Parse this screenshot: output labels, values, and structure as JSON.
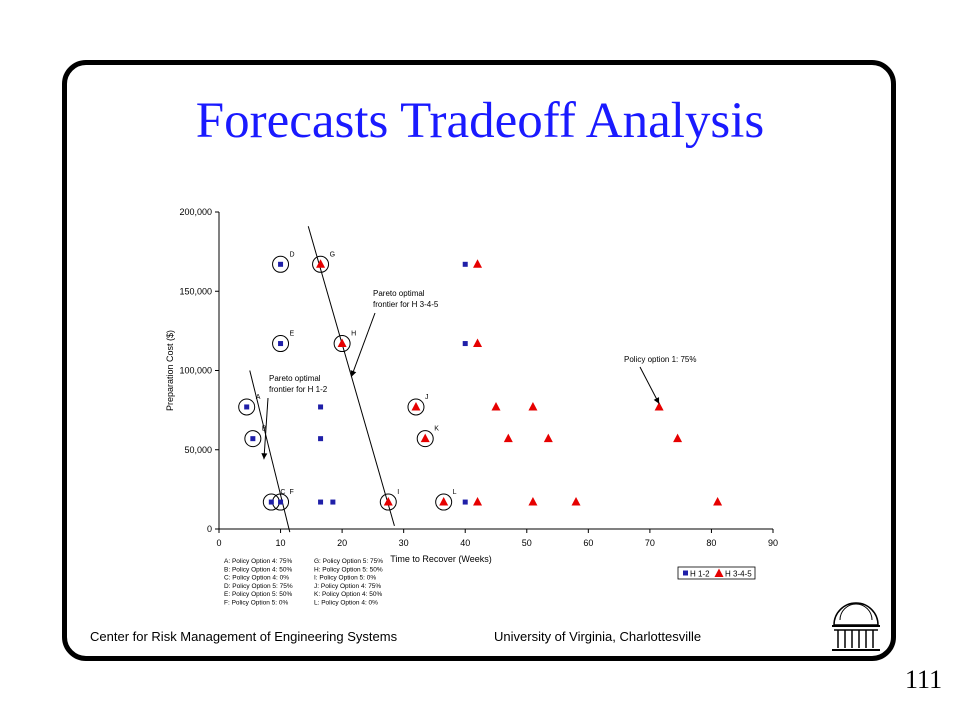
{
  "slide": {
    "title": "Forecasts Tradeoff Analysis",
    "footer_left": "Center for Risk Management of Engineering Systems",
    "footer_right": "University of Virginia, Charlottesville",
    "page_number": "111",
    "title_color": "#1a1aff"
  },
  "chart_data": {
    "type": "scatter",
    "xlabel": "Time to Recover (Weeks)",
    "ylabel": "Preparation Cost ($)",
    "xlim": [
      0,
      90
    ],
    "ylim": [
      0,
      200000
    ],
    "x_ticks": [
      "0",
      "10",
      "20",
      "30",
      "40",
      "50",
      "60",
      "70",
      "80",
      "90"
    ],
    "y_ticks": [
      "0",
      "50,000",
      "100,000",
      "150,000",
      "200,000"
    ],
    "grid": false,
    "legend_position": "bottom-right",
    "series": [
      {
        "name": "H 1-2",
        "marker": "square",
        "color": "#1f1fa8",
        "points": [
          {
            "x": 4.5,
            "y": 77000
          },
          {
            "x": 5.5,
            "y": 57000
          },
          {
            "x": 8.5,
            "y": 17000
          },
          {
            "x": 10.0,
            "y": 17000
          },
          {
            "x": 10.0,
            "y": 117000
          },
          {
            "x": 10.0,
            "y": 167000
          },
          {
            "x": 16.5,
            "y": 77000
          },
          {
            "x": 16.5,
            "y": 57000
          },
          {
            "x": 16.5,
            "y": 17000
          },
          {
            "x": 18.5,
            "y": 17000
          },
          {
            "x": 40.0,
            "y": 167000
          },
          {
            "x": 40.0,
            "y": 117000
          },
          {
            "x": 40.0,
            "y": 17000
          }
        ]
      },
      {
        "name": "H 3-4-5",
        "marker": "triangle",
        "color": "#e60000",
        "points": [
          {
            "x": 16.5,
            "y": 167000
          },
          {
            "x": 20.0,
            "y": 117000
          },
          {
            "x": 27.5,
            "y": 17000
          },
          {
            "x": 32.0,
            "y": 77000
          },
          {
            "x": 33.5,
            "y": 57000
          },
          {
            "x": 36.5,
            "y": 17000
          },
          {
            "x": 42.0,
            "y": 167000
          },
          {
            "x": 42.0,
            "y": 117000
          },
          {
            "x": 42.0,
            "y": 17000
          },
          {
            "x": 45.0,
            "y": 77000
          },
          {
            "x": 47.0,
            "y": 57000
          },
          {
            "x": 51.0,
            "y": 77000
          },
          {
            "x": 51.0,
            "y": 17000
          },
          {
            "x": 53.5,
            "y": 57000
          },
          {
            "x": 58.0,
            "y": 17000
          },
          {
            "x": 71.5,
            "y": 77000
          },
          {
            "x": 74.5,
            "y": 57000
          },
          {
            "x": 81.0,
            "y": 17000
          }
        ]
      }
    ],
    "point_labels": [
      {
        "text": "A",
        "x": 4.5,
        "y": 77000
      },
      {
        "text": "B",
        "x": 5.5,
        "y": 57000
      },
      {
        "text": "C",
        "x": 8.5,
        "y": 17000
      },
      {
        "text": "F",
        "x": 10.0,
        "y": 17000
      },
      {
        "text": "E",
        "x": 10.0,
        "y": 117000
      },
      {
        "text": "D",
        "x": 10.0,
        "y": 167000
      },
      {
        "text": "G",
        "x": 16.5,
        "y": 167000
      },
      {
        "text": "H",
        "x": 20.0,
        "y": 117000
      },
      {
        "text": "I",
        "x": 27.5,
        "y": 17000
      },
      {
        "text": "J",
        "x": 32.0,
        "y": 77000
      },
      {
        "text": "K",
        "x": 33.5,
        "y": 57000
      },
      {
        "text": "L",
        "x": 36.5,
        "y": 17000
      }
    ],
    "frontiers": [
      {
        "name": "H 1-2",
        "from": {
          "x": 5.0,
          "y": 100000
        },
        "to": {
          "x": 11.5,
          "y": -2000
        }
      },
      {
        "name": "H 3-4-5",
        "from": {
          "x": 14.5,
          "y": 191000
        },
        "to": {
          "x": 28.5,
          "y": 2000
        }
      }
    ],
    "annotations": [
      {
        "text": "Pareto optimal frontier for H 1-2",
        "arrow_to": {
          "x": 7.3,
          "y": 44000
        }
      },
      {
        "text": "Pareto optimal frontier for H 3-4-5",
        "arrow_to": {
          "x": 21.5,
          "y": 96000
        }
      },
      {
        "text": "Policy option 1: 75%",
        "arrow_to": {
          "x": 71.5,
          "y": 79000
        }
      }
    ],
    "policy_key": [
      "A: Policy Option 4: 75%",
      "B: Policy Option 4: 50%",
      "C: Policy Option 4: 0%",
      "D: Policy Option 5: 75%",
      "E: Policy Option 5: 50%",
      "F: Policy Option 5: 0%",
      "G: Policy Option 5: 75%",
      "H: Policy Option 5: 50%",
      "I: Policy Option 5: 0%",
      "J: Policy Option 4: 75%",
      "K: Policy Option 4: 50%",
      "L: Policy Option 4: 0%"
    ]
  }
}
